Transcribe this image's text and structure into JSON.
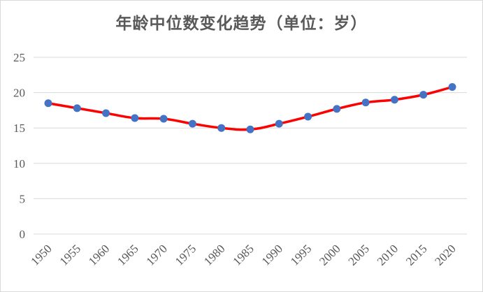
{
  "chart_data": {
    "type": "line",
    "title": "年龄中位数变化趋势（单位：岁）",
    "x": [
      1950,
      1955,
      1960,
      1965,
      1970,
      1975,
      1980,
      1985,
      1990,
      1995,
      2000,
      2005,
      2010,
      2015,
      2020
    ],
    "series": [
      {
        "values": [
          18.5,
          17.8,
          17.1,
          16.4,
          16.3,
          15.6,
          15.0,
          14.8,
          15.6,
          16.6,
          17.7,
          18.6,
          19.0,
          19.7,
          20.8
        ],
        "color": "#ff0000",
        "marker_color": "#4472c4"
      }
    ],
    "yticks": [
      0,
      5,
      10,
      15,
      20,
      25
    ],
    "ylim": [
      0,
      25
    ],
    "grid": true,
    "legend": "none",
    "xlabel": "",
    "ylabel": ""
  }
}
